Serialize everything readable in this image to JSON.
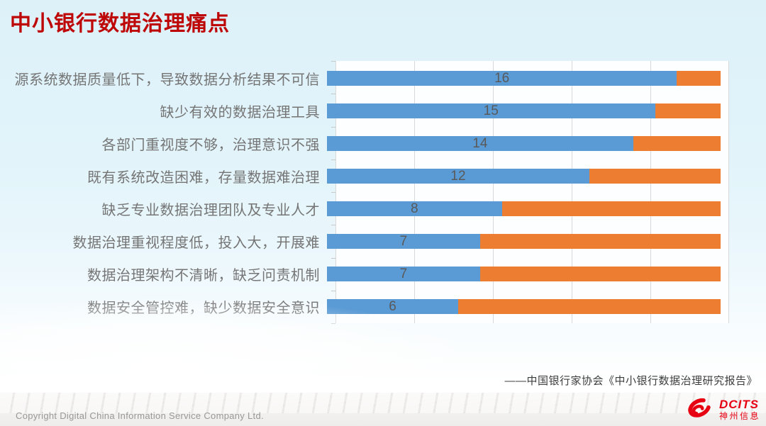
{
  "title": "中小银行数据治理痛点",
  "chart_data": {
    "type": "bar",
    "orientation": "horizontal",
    "stacked": "100%",
    "title": "中小银行数据治理痛点",
    "categories": [
      "源系统数据质量低下，导致数据分析结果不可信",
      "缺少有效的数据治理工具",
      "各部门重视度不够，治理意识不强",
      "既有系统改造困难，存量数据难治理",
      "缺乏专业数据治理团队及专业人才",
      "数据治理重视程度低，投入大，开展难",
      "数据治理架构不清晰，缺乏问责机制",
      "数据安全管控难，缺少数据安全意识"
    ],
    "series": [
      {
        "name": "blue-segment",
        "color": "#5b9bd5",
        "values": [
          16,
          15,
          14,
          12,
          8,
          7,
          7,
          6
        ]
      },
      {
        "name": "orange-segment",
        "color": "#ed7d31",
        "values": [
          2,
          3,
          4,
          6,
          10,
          11,
          11,
          12
        ]
      }
    ],
    "value_labels": [
      16,
      15,
      14,
      12,
      8,
      7,
      7,
      6
    ],
    "row_total": 18,
    "axis": {
      "min_percent": 0,
      "max_percent": 100,
      "gridline_interval_percent": 20
    },
    "grid": "vertical gridlines every 20%, light gray, plot area white",
    "legend": "none"
  },
  "attribution": "——中国银行家协会《中小银行数据治理研究报告》",
  "footer": {
    "copyright": "Copyright  Digital China Information Service Company Ltd."
  },
  "logo": {
    "icon": "red-swirl-icon",
    "name_en": "DCITS",
    "name_cn": "神州信息",
    "color": "#e60012"
  },
  "colors": {
    "title_red": "#be0808",
    "bar_blue": "#5b9bd5",
    "bar_orange": "#ed7d31",
    "background_top": "#ddf1f9",
    "gridline": "#d8d8d8"
  }
}
